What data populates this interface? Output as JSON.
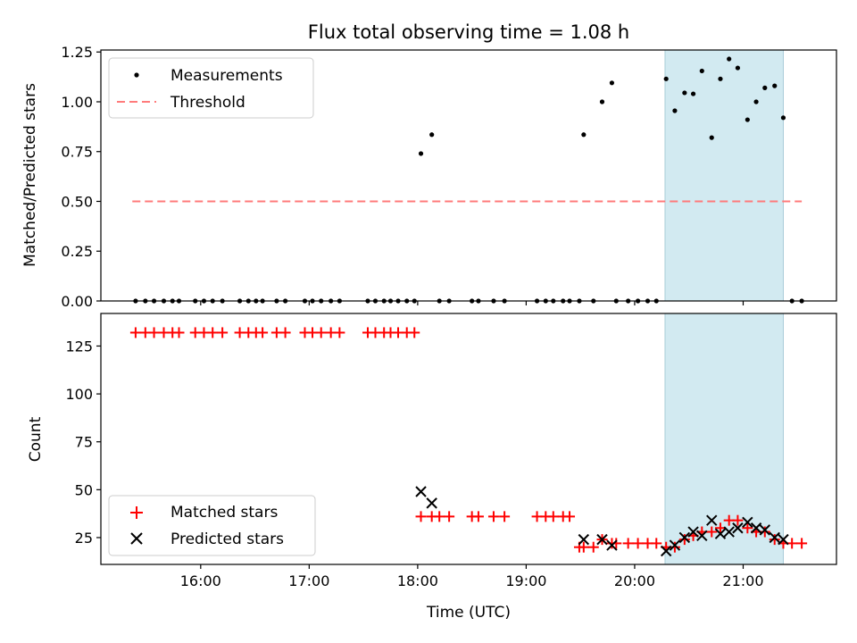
{
  "chart_data": [
    {
      "type": "scatter",
      "title": "Flux total observing time = 1.08 h",
      "xlabel": "",
      "ylabel": "Matched/Predicted stars",
      "xlim": [
        15.08,
        21.86
      ],
      "ylim": [
        0,
        1.26
      ],
      "yticks": [
        0.0,
        0.25,
        0.5,
        0.75,
        1.0,
        1.25
      ],
      "ytick_labels": [
        "0.00",
        "0.25",
        "0.50",
        "0.75",
        "1.00",
        "1.25"
      ],
      "shaded_region": {
        "x": [
          20.28,
          21.37
        ],
        "color": "#add8e6"
      },
      "legend": [
        "Measurements",
        "Threshold"
      ],
      "series": [
        {
          "name": "Measurements",
          "marker": "dot",
          "color": "#000000",
          "x": [
            15.4,
            15.49,
            15.57,
            15.66,
            15.74,
            15.8,
            15.95,
            16.03,
            16.11,
            16.2,
            16.36,
            16.44,
            16.51,
            16.57,
            16.7,
            16.78,
            16.96,
            17.03,
            17.11,
            17.2,
            17.28,
            17.54,
            17.61,
            17.69,
            17.75,
            17.82,
            17.9,
            17.97,
            18.03,
            18.13,
            18.2,
            18.29,
            18.5,
            18.56,
            18.7,
            18.8,
            19.1,
            19.18,
            19.25,
            19.34,
            19.4,
            19.49,
            19.53,
            19.62,
            19.7,
            19.79,
            19.83,
            19.94,
            20.03,
            20.12,
            20.2,
            20.29,
            20.37,
            20.46,
            20.54,
            20.62,
            20.71,
            20.79,
            20.87,
            20.95,
            21.04,
            21.12,
            21.2,
            21.29,
            21.37,
            21.45,
            21.54
          ],
          "y": [
            0,
            0,
            0,
            0,
            0,
            0,
            0,
            0,
            0,
            0,
            0,
            0,
            0,
            0,
            0,
            0,
            0,
            0,
            0,
            0,
            0,
            0,
            0,
            0,
            0,
            0,
            0,
            0,
            0.74,
            0.835,
            0,
            0,
            0,
            0,
            0,
            0,
            0,
            0,
            0,
            0,
            0,
            0,
            0.835,
            0,
            1.0,
            1.095,
            0,
            0,
            0,
            0,
            0,
            1.115,
            0.955,
            1.045,
            1.04,
            1.155,
            0.82,
            1.115,
            1.215,
            1.17,
            0.91,
            1.0,
            1.07,
            1.08,
            0.92,
            0,
            0
          ]
        },
        {
          "name": "Threshold",
          "line": "dashed",
          "color": "#ff7b7b",
          "x": [
            15.37,
            21.54
          ],
          "y": [
            0.5,
            0.5
          ]
        }
      ]
    },
    {
      "type": "scatter",
      "title": "",
      "xlabel": "Time (UTC)",
      "ylabel": "Count",
      "xlim": [
        15.08,
        21.86
      ],
      "ylim": [
        11,
        142
      ],
      "yticks": [
        25,
        50,
        75,
        100,
        125
      ],
      "ytick_labels": [
        "25",
        "50",
        "75",
        "100",
        "125"
      ],
      "xticks": [
        16,
        17,
        18,
        19,
        20,
        21
      ],
      "xtick_labels": [
        "16:00",
        "17:00",
        "18:00",
        "19:00",
        "20:00",
        "21:00"
      ],
      "shaded_region": {
        "x": [
          20.28,
          21.37
        ],
        "color": "#add8e6"
      },
      "legend": [
        "Matched stars",
        "Predicted stars"
      ],
      "series": [
        {
          "name": "Matched stars",
          "marker": "plus",
          "color": "#ff0000",
          "x": [
            15.4,
            15.49,
            15.57,
            15.66,
            15.74,
            15.8,
            15.95,
            16.03,
            16.11,
            16.2,
            16.36,
            16.44,
            16.51,
            16.57,
            16.7,
            16.78,
            16.96,
            17.03,
            17.11,
            17.2,
            17.28,
            17.54,
            17.61,
            17.69,
            17.75,
            17.82,
            17.9,
            17.97,
            18.03,
            18.13,
            18.2,
            18.29,
            18.5,
            18.56,
            18.7,
            18.8,
            19.1,
            19.18,
            19.25,
            19.34,
            19.4,
            19.49,
            19.53,
            19.62,
            19.7,
            19.79,
            19.83,
            19.94,
            20.03,
            20.12,
            20.2,
            20.29,
            20.37,
            20.46,
            20.54,
            20.62,
            20.71,
            20.79,
            20.87,
            20.95,
            21.04,
            21.12,
            21.2,
            21.29,
            21.37,
            21.45,
            21.54
          ],
          "y": [
            132,
            132,
            132,
            132,
            132,
            132,
            132,
            132,
            132,
            132,
            132,
            132,
            132,
            132,
            132,
            132,
            132,
            132,
            132,
            132,
            132,
            132,
            132,
            132,
            132,
            132,
            132,
            132,
            36,
            36,
            36,
            36,
            36,
            36,
            36,
            36,
            36,
            36,
            36,
            36,
            36,
            20,
            20,
            20,
            24,
            22,
            22,
            22,
            22,
            22,
            22,
            20,
            20,
            24,
            26,
            28,
            28,
            30,
            34,
            34,
            30,
            28,
            28,
            24,
            22,
            22,
            22
          ]
        },
        {
          "name": "Predicted stars",
          "marker": "x",
          "color": "#000000",
          "x": [
            18.03,
            18.13,
            19.53,
            19.7,
            19.79,
            20.29,
            20.37,
            20.46,
            20.54,
            20.62,
            20.71,
            20.79,
            20.87,
            20.95,
            21.04,
            21.12,
            21.2,
            21.29,
            21.37
          ],
          "y": [
            49,
            43,
            24,
            24,
            21,
            18,
            21,
            25,
            28,
            26,
            34,
            27,
            28,
            30,
            33,
            30,
            29,
            25,
            24
          ]
        }
      ]
    }
  ]
}
